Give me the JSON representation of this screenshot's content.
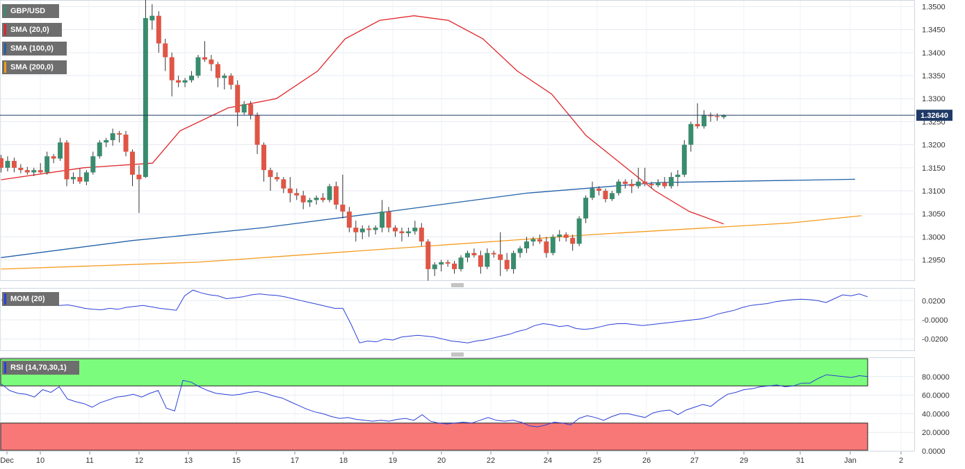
{
  "legend": {
    "symbol": "GBP/USD",
    "sma20": "SMA (20,0)",
    "sma100": "SMA (100,0)",
    "sma200": "SMA (200,0)",
    "mom": "MOM (20)",
    "rsi": "RSI (14,70,30,1)"
  },
  "colors": {
    "up": "#3a8c6e",
    "down": "#e05545",
    "sma20": "#e0252a",
    "sma100": "#2060a8",
    "sma200": "#f59a1e",
    "mom": "#2a3fd8",
    "rsi": "#2a3fd8",
    "rsi_over": "#7cfc7c",
    "rsi_under": "#f87878",
    "current_price_line": "#1f3a66"
  },
  "chart_data": [
    {
      "type": "candlestick",
      "title": "GBP/USD",
      "ylim": [
        1.2905,
        1.3515
      ],
      "y_ticks": [
        "1.3500",
        "1.3450",
        "1.3400",
        "1.3350",
        "1.3300",
        "1.3250",
        "1.3200",
        "1.3150",
        "1.3100",
        "1.3050",
        "1.3000",
        "1.2950"
      ],
      "x_tick_labels": [
        "Dec",
        "10",
        "11",
        "12",
        "13",
        "15",
        "17",
        "18",
        "19",
        "20",
        "22",
        "24",
        "25",
        "26",
        "27",
        "29",
        "31",
        "Jan",
        "2"
      ],
      "current_price": 1.3264,
      "current_price_label": "1.32640",
      "candles": [
        [
          1.3171,
          1.3178,
          1.314,
          1.315
        ],
        [
          1.315,
          1.3175,
          1.3142,
          1.3165
        ],
        [
          1.3165,
          1.3172,
          1.314,
          1.315
        ],
        [
          1.315,
          1.3158,
          1.3138,
          1.3145
        ],
        [
          1.3145,
          1.3152,
          1.3135,
          1.314
        ],
        [
          1.314,
          1.315,
          1.3132,
          1.3145
        ],
        [
          1.3145,
          1.316,
          1.3138,
          1.314
        ],
        [
          1.314,
          1.3185,
          1.3135,
          1.3175
        ],
        [
          1.3175,
          1.318,
          1.316,
          1.317
        ],
        [
          1.317,
          1.3215,
          1.3165,
          1.3205
        ],
        [
          1.3205,
          1.321,
          1.311,
          1.3125
        ],
        [
          1.3125,
          1.314,
          1.3115,
          1.313
        ],
        [
          1.313,
          1.3148,
          1.3115,
          1.312
        ],
        [
          1.312,
          1.3145,
          1.3112,
          1.314
        ],
        [
          1.314,
          1.3185,
          1.3135,
          1.3175
        ],
        [
          1.3175,
          1.321,
          1.317,
          1.3205
        ],
        [
          1.3205,
          1.3215,
          1.3195,
          1.321
        ],
        [
          1.321,
          1.3235,
          1.3198,
          1.3225
        ],
        [
          1.3225,
          1.323,
          1.3205,
          1.3222
        ],
        [
          1.3222,
          1.323,
          1.3175,
          1.3185
        ],
        [
          1.3185,
          1.319,
          1.311,
          1.3135
        ],
        [
          1.3135,
          1.3155,
          1.3052,
          1.3125
        ],
        [
          1.313,
          1.3515,
          1.3128,
          1.3475
        ],
        [
          1.347,
          1.3505,
          1.345,
          1.348
        ],
        [
          1.348,
          1.349,
          1.34,
          1.342
        ],
        [
          1.342,
          1.343,
          1.336,
          1.339
        ],
        [
          1.339,
          1.34,
          1.3305,
          1.334
        ],
        [
          1.334,
          1.335,
          1.3325,
          1.3335
        ],
        [
          1.3335,
          1.3345,
          1.3325,
          1.334
        ],
        [
          1.334,
          1.336,
          1.3335,
          1.335
        ],
        [
          1.335,
          1.3395,
          1.3345,
          1.339
        ],
        [
          1.339,
          1.3425,
          1.338,
          1.3385
        ],
        [
          1.3385,
          1.3395,
          1.336,
          1.3375
        ],
        [
          1.3375,
          1.338,
          1.3325,
          1.3345
        ],
        [
          1.3345,
          1.3355,
          1.332,
          1.335
        ],
        [
          1.335,
          1.3355,
          1.332,
          1.333
        ],
        [
          1.333,
          1.334,
          1.324,
          1.327
        ],
        [
          1.327,
          1.3295,
          1.3265,
          1.3288
        ],
        [
          1.3288,
          1.3295,
          1.3255,
          1.3265
        ],
        [
          1.3265,
          1.327,
          1.318,
          1.32
        ],
        [
          1.32,
          1.3205,
          1.312,
          1.3145
        ],
        [
          1.3145,
          1.315,
          1.31,
          1.313
        ],
        [
          1.313,
          1.314,
          1.312,
          1.3125
        ],
        [
          1.3125,
          1.313,
          1.3095,
          1.3105
        ],
        [
          1.3105,
          1.313,
          1.3075,
          1.3095
        ],
        [
          1.3095,
          1.3105,
          1.308,
          1.309
        ],
        [
          1.309,
          1.31,
          1.306,
          1.3075
        ],
        [
          1.3075,
          1.3085,
          1.3065,
          1.308
        ],
        [
          1.308,
          1.309,
          1.307,
          1.3085
        ],
        [
          1.3085,
          1.3095,
          1.3075,
          1.308
        ],
        [
          1.308,
          1.3115,
          1.3075,
          1.311
        ],
        [
          1.311,
          1.312,
          1.306,
          1.307
        ],
        [
          1.307,
          1.3135,
          1.304,
          1.3055
        ],
        [
          1.3055,
          1.3065,
          1.301,
          1.302
        ],
        [
          1.302,
          1.3035,
          1.299,
          1.301
        ],
        [
          1.301,
          1.3025,
          1.2995,
          1.3018
        ],
        [
          1.3018,
          1.3025,
          1.3,
          1.3015
        ],
        [
          1.3015,
          1.3025,
          1.3005,
          1.302
        ],
        [
          1.302,
          1.308,
          1.301,
          1.3055
        ],
        [
          1.3055,
          1.3065,
          1.301,
          1.302
        ],
        [
          1.302,
          1.3025,
          1.3,
          1.3012
        ],
        [
          1.3012,
          1.302,
          1.299,
          1.3008
        ],
        [
          1.3008,
          1.302,
          1.3,
          1.3012
        ],
        [
          1.3012,
          1.3035,
          1.3005,
          1.302
        ],
        [
          1.302,
          1.303,
          1.298,
          1.299
        ],
        [
          1.299,
          1.2995,
          1.2905,
          1.293
        ],
        [
          1.293,
          1.2945,
          1.2915,
          1.294
        ],
        [
          1.294,
          1.295,
          1.2925,
          1.2945
        ],
        [
          1.2945,
          1.295,
          1.2935,
          1.2942
        ],
        [
          1.2942,
          1.2948,
          1.292,
          1.293
        ],
        [
          1.293,
          1.296,
          1.2925,
          1.2955
        ],
        [
          1.2955,
          1.297,
          1.2945,
          1.2965
        ],
        [
          1.2965,
          1.2975,
          1.2955,
          1.296
        ],
        [
          1.296,
          1.297,
          1.292,
          1.2935
        ],
        [
          1.2935,
          1.2975,
          1.293,
          1.2965
        ],
        [
          1.2965,
          1.297,
          1.2955,
          1.2962
        ],
        [
          1.2962,
          1.301,
          1.2915,
          1.295
        ],
        [
          1.295,
          1.2965,
          1.2925,
          1.293
        ],
        [
          1.293,
          1.297,
          1.292,
          1.2965
        ],
        [
          1.2965,
          1.298,
          1.2955,
          1.2975
        ],
        [
          1.2975,
          1.3,
          1.2965,
          1.299
        ],
        [
          1.299,
          1.3,
          1.298,
          1.2995
        ],
        [
          1.2995,
          1.3005,
          1.2985,
          1.299
        ],
        [
          1.299,
          1.3,
          1.2955,
          1.2965
        ],
        [
          1.2965,
          1.3005,
          1.296,
          1.3
        ],
        [
          1.3,
          1.3015,
          1.299,
          1.3005
        ],
        [
          1.3005,
          1.301,
          1.299,
          1.2998
        ],
        [
          1.2998,
          1.3005,
          1.297,
          1.2985
        ],
        [
          1.2985,
          1.3045,
          1.298,
          1.304
        ],
        [
          1.304,
          1.309,
          1.303,
          1.3085
        ],
        [
          1.3085,
          1.312,
          1.308,
          1.3105
        ],
        [
          1.3105,
          1.311,
          1.309,
          1.31
        ],
        [
          1.31,
          1.3105,
          1.3075,
          1.3082
        ],
        [
          1.3082,
          1.31,
          1.3078,
          1.3095
        ],
        [
          1.3095,
          1.3125,
          1.309,
          1.312
        ],
        [
          1.312,
          1.3125,
          1.3105,
          1.3115
        ],
        [
          1.3115,
          1.3125,
          1.3095,
          1.311
        ],
        [
          1.311,
          1.315,
          1.3105,
          1.312
        ],
        [
          1.312,
          1.315,
          1.311,
          1.3115
        ],
        [
          1.3115,
          1.312,
          1.3105,
          1.3112
        ],
        [
          1.3112,
          1.3125,
          1.3108,
          1.3118
        ],
        [
          1.3118,
          1.313,
          1.3105,
          1.311
        ],
        [
          1.311,
          1.314,
          1.3105,
          1.313
        ],
        [
          1.313,
          1.3145,
          1.311,
          1.3135
        ],
        [
          1.3135,
          1.321,
          1.313,
          1.32
        ],
        [
          1.32,
          1.325,
          1.3185,
          1.3245
        ],
        [
          1.3245,
          1.329,
          1.3235,
          1.324
        ],
        [
          1.324,
          1.3275,
          1.3235,
          1.3265
        ],
        [
          1.3265,
          1.327,
          1.325,
          1.3262
        ],
        [
          1.3262,
          1.3268,
          1.3252,
          1.326
        ],
        [
          1.326,
          1.3266,
          1.3256,
          1.3264
        ]
      ],
      "sma20": [
        [
          0,
          1.3124
        ],
        [
          12,
          1.315
        ],
        [
          22,
          1.316
        ],
        [
          26,
          1.323
        ],
        [
          33,
          1.328
        ],
        [
          40,
          1.33
        ],
        [
          46,
          1.336
        ],
        [
          50,
          1.343
        ],
        [
          55,
          1.347
        ],
        [
          60,
          1.348
        ],
        [
          65,
          1.347
        ],
        [
          70,
          1.343
        ],
        [
          75,
          1.336
        ],
        [
          80,
          1.331
        ],
        [
          85,
          1.322
        ],
        [
          90,
          1.316
        ],
        [
          95,
          1.31
        ],
        [
          100,
          1.3055
        ],
        [
          105,
          1.3028
        ]
      ],
      "sma100": [
        [
          0,
          1.2955
        ],
        [
          20,
          1.2992
        ],
        [
          40,
          1.302
        ],
        [
          60,
          1.3057
        ],
        [
          80,
          1.3095
        ],
        [
          100,
          1.3118
        ],
        [
          130,
          1.3125
        ]
      ],
      "sma200": [
        [
          0,
          1.293
        ],
        [
          30,
          1.2945
        ],
        [
          60,
          1.2975
        ],
        [
          90,
          1.3005
        ],
        [
          120,
          1.303
        ],
        [
          131,
          1.3046
        ]
      ]
    },
    {
      "type": "line",
      "title": "MOM (20)",
      "ylim": [
        -0.0325,
        0.0325
      ],
      "y_ticks": [
        "0.0200",
        "-0.0000",
        "-0.0200"
      ],
      "values": [
        0.021,
        0.018,
        0.017,
        0.016,
        0.0155,
        0.016,
        0.0155,
        0.015,
        0.0155,
        0.014,
        0.012,
        0.011,
        0.0105,
        0.012,
        0.011,
        0.013,
        0.014,
        0.015,
        0.0135,
        0.012,
        0.011,
        0.01,
        0.025,
        0.031,
        0.028,
        0.026,
        0.025,
        0.022,
        0.023,
        0.024,
        0.026,
        0.027,
        0.026,
        0.0255,
        0.024,
        0.022,
        0.02,
        0.018,
        0.016,
        0.014,
        0.012,
        0.012,
        -0.005,
        -0.024,
        -0.022,
        -0.023,
        -0.02,
        -0.021,
        -0.018,
        -0.017,
        -0.016,
        -0.017,
        -0.018,
        -0.02,
        -0.022,
        -0.023,
        -0.024,
        -0.022,
        -0.021,
        -0.019,
        -0.017,
        -0.015,
        -0.012,
        -0.01,
        -0.006,
        -0.004,
        -0.005,
        -0.007,
        -0.006,
        -0.009,
        -0.01,
        -0.009,
        -0.007,
        -0.005,
        -0.004,
        -0.004,
        -0.005,
        -0.006,
        -0.005,
        -0.004,
        -0.003,
        -0.002,
        -0.001,
        0.0,
        0.001,
        0.003,
        0.006,
        0.008,
        0.01,
        0.013,
        0.015,
        0.016,
        0.017,
        0.019,
        0.02,
        0.021,
        0.0215,
        0.021,
        0.02,
        0.018,
        0.022,
        0.026,
        0.025,
        0.027,
        0.024
      ],
      "x": "index"
    },
    {
      "type": "line",
      "title": "RSI (14,70,30,1)",
      "ylim": [
        0,
        100
      ],
      "y_ticks": [
        "80.0000",
        "60.0000",
        "40.0000",
        "20.0000",
        "0.0000"
      ],
      "overbought": 70,
      "oversold": 30,
      "values": [
        72,
        65,
        62,
        61,
        58,
        66,
        63,
        69,
        56,
        53,
        51,
        47,
        52,
        55,
        58,
        59,
        61,
        58,
        62,
        65,
        46,
        43,
        76,
        74,
        69,
        65,
        62,
        61,
        60,
        61,
        63,
        64,
        62,
        59,
        57,
        53,
        49,
        45,
        42,
        40,
        37,
        35,
        36,
        34,
        33,
        32,
        33,
        32,
        34,
        35,
        33,
        39,
        32,
        30,
        29,
        30,
        31,
        30,
        33,
        36,
        33,
        32,
        33,
        31,
        27,
        26,
        28,
        31,
        30,
        28,
        35,
        38,
        36,
        33,
        37,
        40,
        40,
        38,
        36,
        41,
        43,
        44,
        39,
        44,
        47,
        50,
        48,
        55,
        61,
        63,
        66,
        67,
        69,
        70,
        71,
        69,
        70,
        73,
        73,
        78,
        82,
        81,
        80,
        79,
        81,
        80
      ],
      "x": "index"
    }
  ]
}
